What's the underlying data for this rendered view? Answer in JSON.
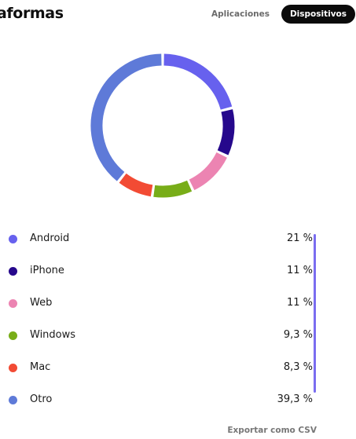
{
  "header": {
    "title": "aformas",
    "tabs": [
      {
        "label": "Aplicaciones",
        "active": false
      },
      {
        "label": "Dispositivos",
        "active": true
      }
    ]
  },
  "chart_data": {
    "type": "pie",
    "series": [
      {
        "name": "Android",
        "value": 21,
        "display": "21 %",
        "color": "#6761ee"
      },
      {
        "name": "iPhone",
        "value": 11,
        "display": "11 %",
        "color": "#26088c"
      },
      {
        "name": "Web",
        "value": 11,
        "display": "11 %",
        "color": "#ec84b2"
      },
      {
        "name": "Windows",
        "value": 9.3,
        "display": "9,3 %",
        "color": "#78ad18"
      },
      {
        "name": "Mac",
        "value": 8.3,
        "display": "8,3 %",
        "color": "#f24b34"
      },
      {
        "name": "Otro",
        "value": 39.3,
        "display": "39,3 %",
        "color": "#5e7ad8"
      }
    ]
  },
  "footer": {
    "export_label": "Exportar como CSV"
  },
  "colors": {
    "accent": "#7a6df0",
    "active_tab_bg": "#0b0b0b"
  }
}
